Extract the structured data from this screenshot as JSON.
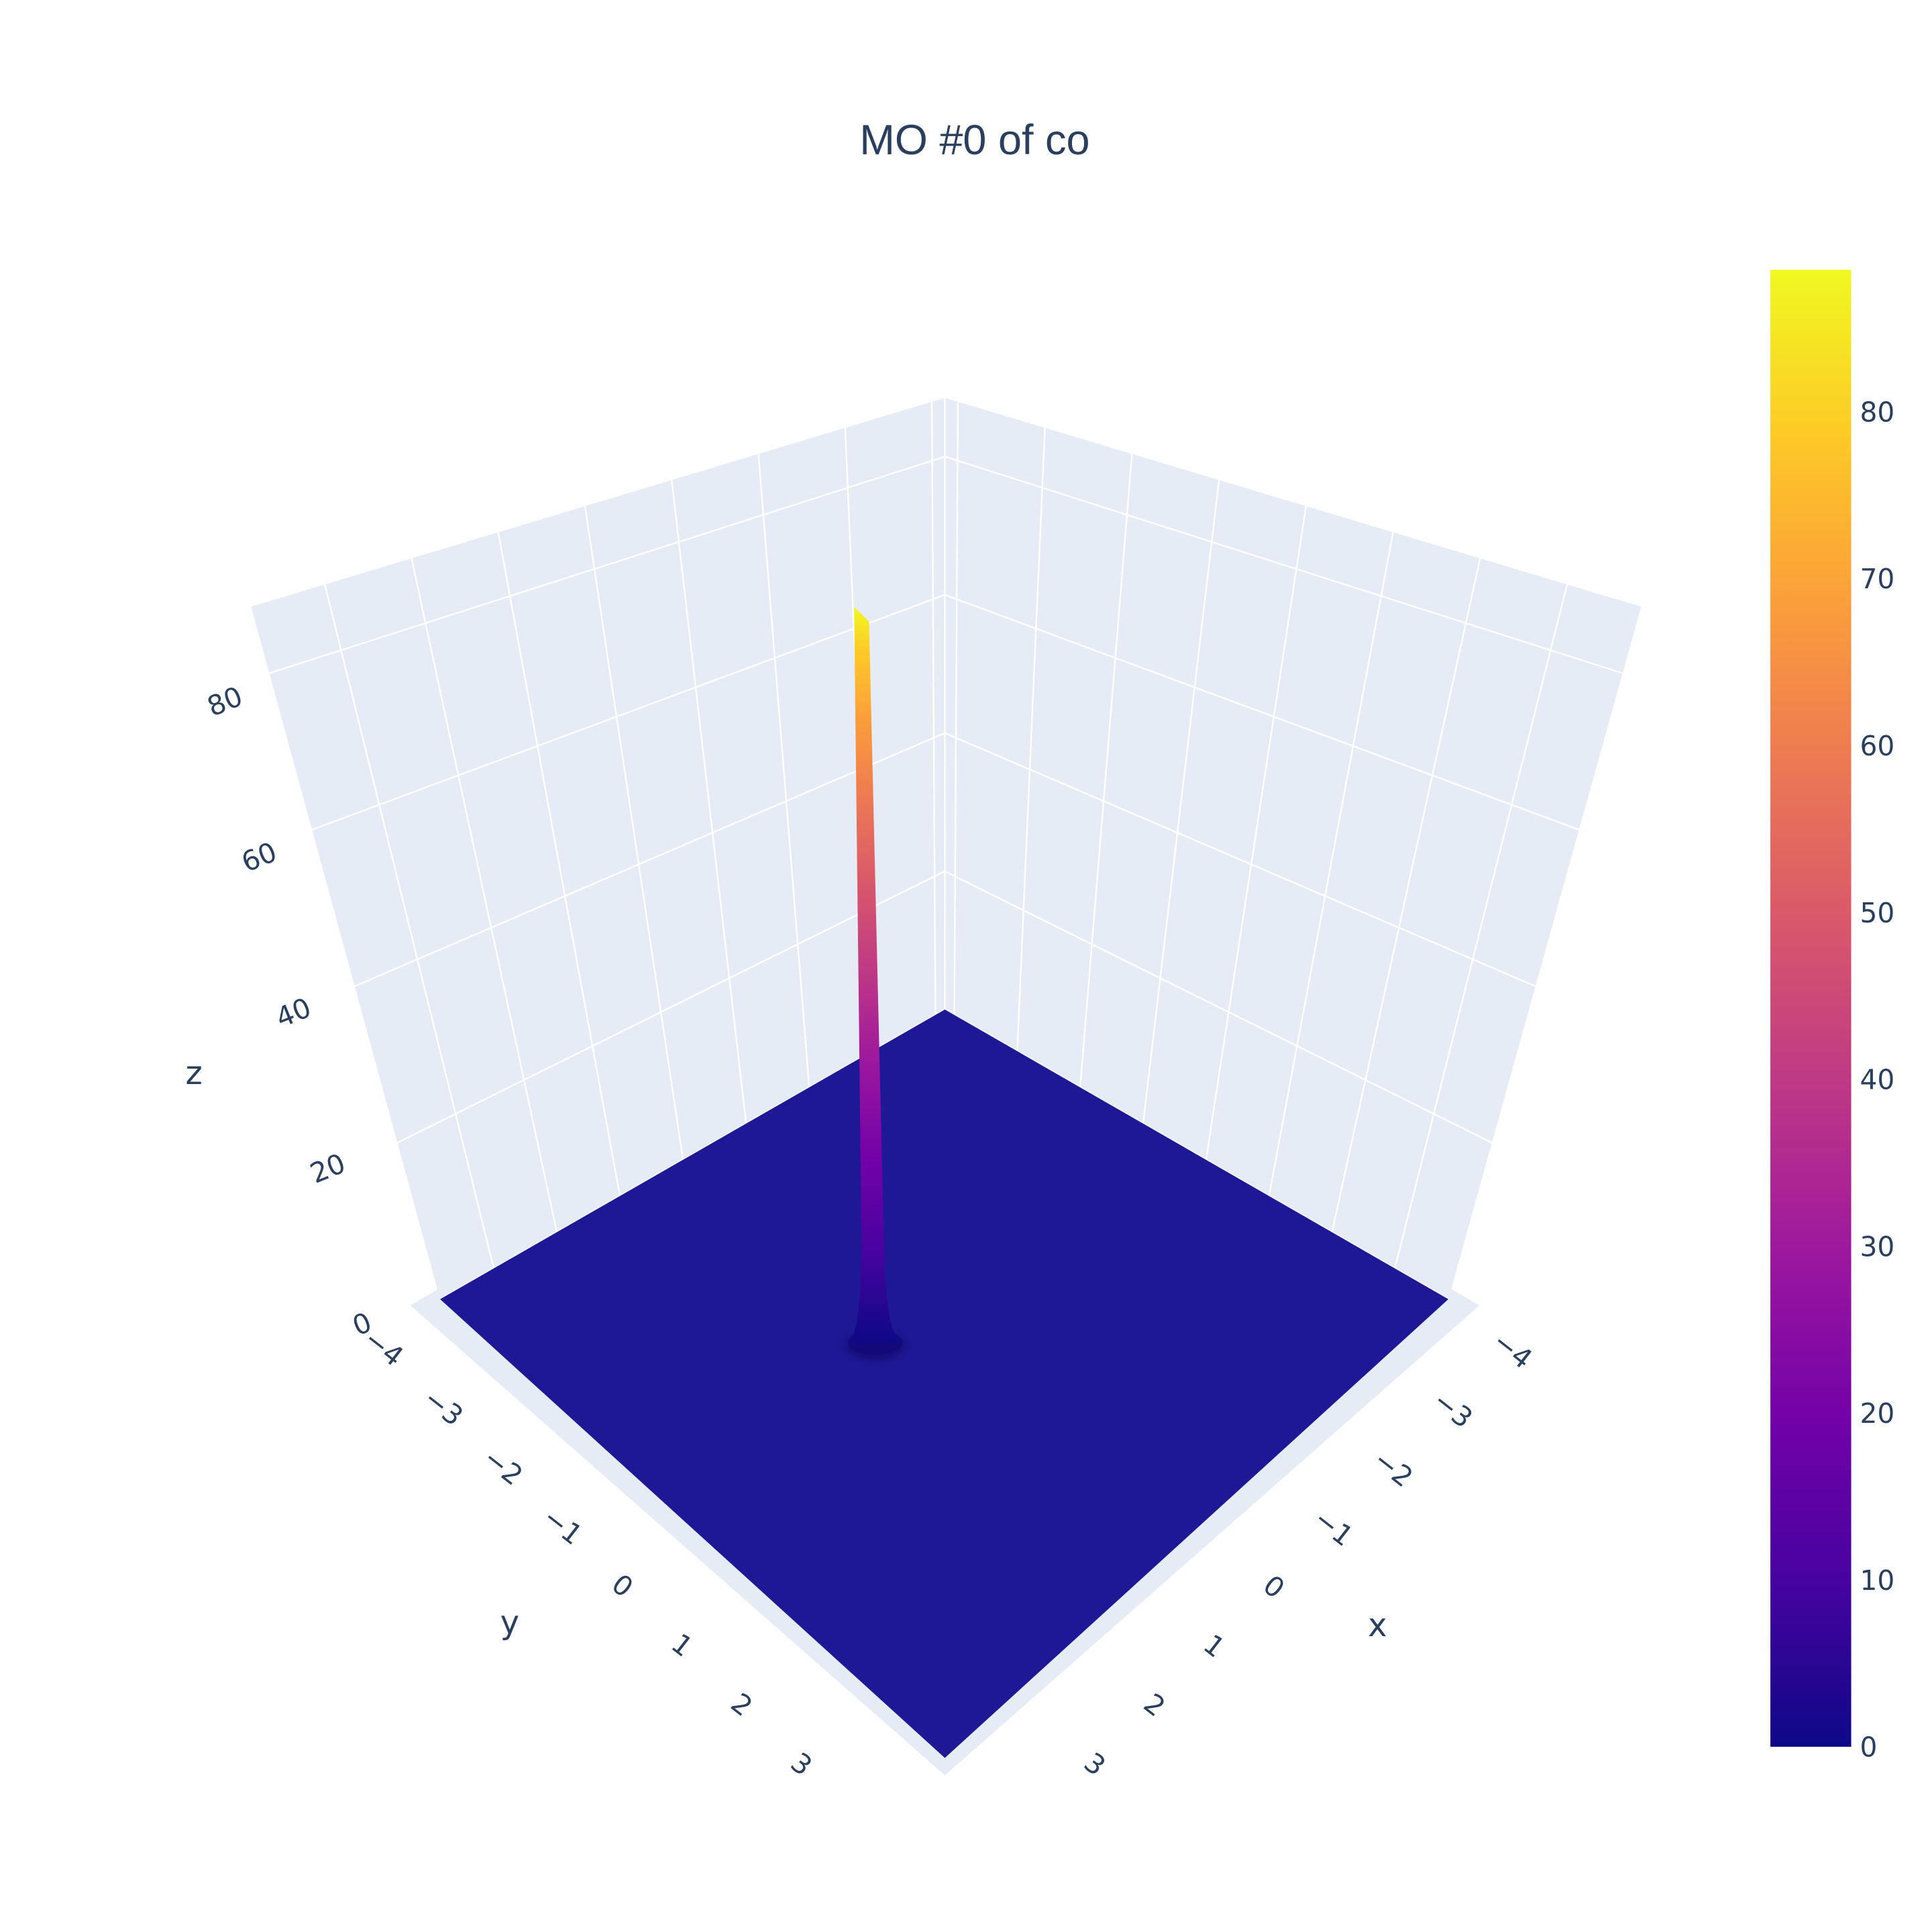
{
  "chart_data": {
    "type": "surface",
    "title": "MO #0 of co",
    "x_axis": {
      "label": "x",
      "ticks": [
        "−4",
        "−3",
        "−2",
        "−1",
        "0",
        "1",
        "2",
        "3"
      ],
      "range": [
        -4,
        4
      ]
    },
    "y_axis": {
      "label": "y",
      "ticks": [
        "−4",
        "−3",
        "−2",
        "−1",
        "0",
        "1",
        "2",
        "3"
      ],
      "range": [
        -4,
        4
      ]
    },
    "z_axis": {
      "label": "z",
      "ticks": [
        "0",
        "20",
        "40",
        "60",
        "80"
      ],
      "range": [
        0,
        88.5
      ]
    },
    "surface": {
      "baseline_z": 0,
      "peak_z": 88.5,
      "peak_x": -0.8,
      "peak_y": -1.2
    },
    "colorscale": {
      "name": "plasma",
      "min": 0,
      "max": 88.5,
      "ticks": [
        "0",
        "10",
        "20",
        "30",
        "40",
        "50",
        "60",
        "70",
        "80"
      ]
    },
    "colors": {
      "background": "#ffffff",
      "plot_bg": "#e5ecf6",
      "grid": "#ffffff",
      "text": "#2a3f5f",
      "floor": "#1e1896"
    },
    "grid": true,
    "legend_position": "right"
  }
}
